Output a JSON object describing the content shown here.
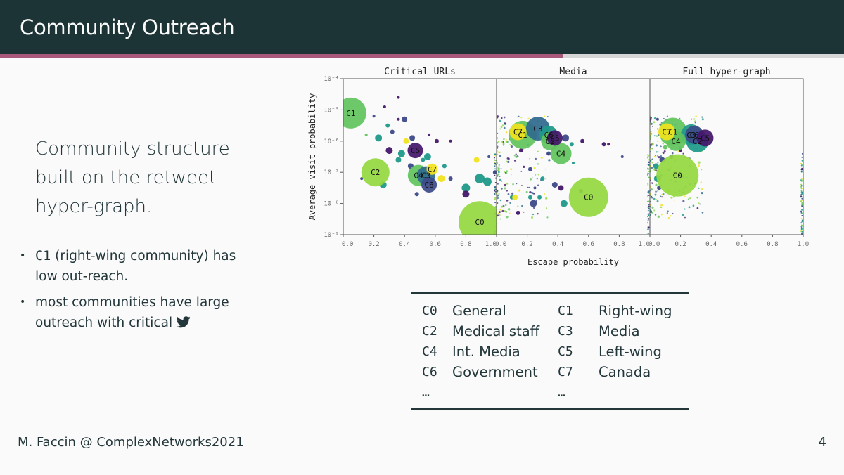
{
  "slide": {
    "title": "Community Outreach",
    "progress": 0.667,
    "statement_lines": [
      "Community structure",
      "built on the retweet",
      "hyper-graph."
    ],
    "bullet1_code": "C1",
    "bullet1_text": " (right-wing community) has low out-reach.",
    "bullet2_text": "most communities have large outreach with critical",
    "bullet2_icon": "twitter-bird-icon",
    "footer": "M. Faccin @ ComplexNetworks2021",
    "page_number": "4",
    "colors": {
      "titlebar": "#1c3436",
      "progress": "#a8587a",
      "text": "#23373b"
    }
  },
  "legend": {
    "rows": [
      [
        {
          "code": "C0",
          "name": "General"
        },
        {
          "code": "C1",
          "name": "Right-wing"
        }
      ],
      [
        {
          "code": "C2",
          "name": "Medical staff"
        },
        {
          "code": "C3",
          "name": "Media"
        }
      ],
      [
        {
          "code": "C4",
          "name": "Int. Media"
        },
        {
          "code": "C5",
          "name": "Left-wing"
        }
      ],
      [
        {
          "code": "C6",
          "name": "Government"
        },
        {
          "code": "C7",
          "name": "Canada"
        }
      ]
    ],
    "ellipsis": "…"
  },
  "chart_data": {
    "type": "scatter",
    "xlabel": "Escape probability",
    "ylabel": "Average visit probability",
    "xlim": [
      0,
      1
    ],
    "ylim_exponent": [
      -9,
      -4
    ],
    "y_scale": "log",
    "x_ticks": [
      "0.0",
      "0.2",
      "0.4",
      "0.6",
      "0.8",
      "1.0"
    ],
    "y_ticks": [
      "10⁻⁹",
      "10⁻⁸",
      "10⁻⁷",
      "10⁻⁶",
      "10⁻⁵",
      "10⁻⁴"
    ],
    "colors": {
      "green": "#62c45e",
      "lime": "#94d841",
      "yellow": "#f0e31f",
      "teal": "#1f9a8a",
      "blue": "#2f6a8e",
      "navy": "#3d4a89",
      "purple": "#44176a"
    },
    "panels": [
      {
        "title": "Critical URLs",
        "labeled": [
          {
            "label": "C1",
            "x": 0.05,
            "y": -5.1,
            "r": 22,
            "c": "green"
          },
          {
            "label": "C0",
            "x": 0.89,
            "y": -8.6,
            "r": 30,
            "c": "lime"
          },
          {
            "label": "C2",
            "x": 0.21,
            "y": -7.0,
            "r": 20,
            "c": "lime"
          },
          {
            "label": "C5",
            "x": 0.47,
            "y": -6.3,
            "r": 11,
            "c": "purple"
          },
          {
            "label": "C4",
            "x": 0.49,
            "y": -7.1,
            "r": 15,
            "c": "green"
          },
          {
            "label": "C3",
            "x": 0.54,
            "y": -7.1,
            "r": 13,
            "c": "blue"
          },
          {
            "label": "C7",
            "x": 0.58,
            "y": -6.9,
            "r": 8,
            "c": "yellow"
          },
          {
            "label": "C6",
            "x": 0.56,
            "y": -7.4,
            "r": 11,
            "c": "navy"
          }
        ],
        "small": [
          [
            0.2,
            -5.2,
            2,
            "navy"
          ],
          [
            0.27,
            -4.9,
            2,
            "purple"
          ],
          [
            0.36,
            -4.6,
            2,
            "purple"
          ],
          [
            0.29,
            -5.5,
            3,
            "teal"
          ],
          [
            0.32,
            -5.7,
            3,
            "navy"
          ],
          [
            0.36,
            -5.3,
            2,
            "purple"
          ],
          [
            0.4,
            -5.3,
            4,
            "navy"
          ],
          [
            0.23,
            -5.9,
            5,
            "teal"
          ],
          [
            0.3,
            -6.3,
            5,
            "purple"
          ],
          [
            0.38,
            -6.4,
            5,
            "teal"
          ],
          [
            0.41,
            -6.0,
            4,
            "yellow"
          ],
          [
            0.45,
            -5.9,
            4,
            "navy"
          ],
          [
            0.36,
            -6.6,
            4,
            "teal"
          ],
          [
            0.44,
            -6.8,
            4,
            "navy"
          ],
          [
            0.52,
            -6.6,
            3,
            "teal"
          ],
          [
            0.55,
            -6.5,
            5,
            "teal"
          ],
          [
            0.61,
            -6.0,
            3,
            "purple"
          ],
          [
            0.66,
            -6.8,
            3,
            "teal"
          ],
          [
            0.7,
            -6.0,
            2,
            "purple"
          ],
          [
            0.87,
            -6.6,
            4,
            "yellow"
          ],
          [
            0.95,
            -6.5,
            2,
            "navy"
          ],
          [
            0.7,
            -7.2,
            3,
            "navy"
          ],
          [
            0.64,
            -7.2,
            5,
            "yellow"
          ],
          [
            0.8,
            -7.5,
            6,
            "teal"
          ],
          [
            0.8,
            -7.7,
            5,
            "purple"
          ],
          [
            0.89,
            -7.2,
            7,
            "teal"
          ],
          [
            0.94,
            -7.3,
            6,
            "teal"
          ],
          [
            0.26,
            -7.4,
            5,
            "teal"
          ],
          [
            0.12,
            -7.2,
            2,
            "navy"
          ],
          [
            0.48,
            -7.7,
            3,
            "navy"
          ],
          [
            0.56,
            -5.8,
            2,
            "purple"
          ],
          [
            0.15,
            -5.8,
            2,
            "green"
          ],
          [
            0.99,
            -7.0,
            3,
            "navy"
          ]
        ]
      },
      {
        "title": "Media",
        "labeled": [
          {
            "label": "C0",
            "x": 0.6,
            "y": -7.8,
            "r": 28,
            "c": "lime"
          },
          {
            "label": "C1",
            "x": 0.17,
            "y": -5.8,
            "r": 20,
            "c": "green"
          },
          {
            "label": "C7",
            "x": 0.14,
            "y": -5.7,
            "r": 12,
            "c": "yellow"
          },
          {
            "label": "C3",
            "x": 0.27,
            "y": -5.6,
            "r": 17,
            "c": "blue"
          },
          {
            "label": "C6",
            "x": 0.34,
            "y": -5.8,
            "r": 13,
            "c": "teal"
          },
          {
            "label": "C5",
            "x": 0.38,
            "y": -5.9,
            "r": 11,
            "c": "purple"
          },
          {
            "label": "C2",
            "x": 0.35,
            "y": -6.0,
            "r": 13,
            "c": "green"
          },
          {
            "label": "C4",
            "x": 0.42,
            "y": -6.4,
            "r": 15,
            "c": "green"
          }
        ],
        "small": [
          [
            0.45,
            -5.9,
            5,
            "navy"
          ],
          [
            0.49,
            -6.1,
            3,
            "teal"
          ],
          [
            0.56,
            -6.0,
            3,
            "purple"
          ],
          [
            0.7,
            -6.1,
            3,
            "purple"
          ],
          [
            0.73,
            -6.1,
            2,
            "purple"
          ],
          [
            0.82,
            -6.5,
            2,
            "navy"
          ],
          [
            0.22,
            -6.9,
            3,
            "navy"
          ],
          [
            0.25,
            -7.5,
            2,
            "navy"
          ],
          [
            0.3,
            -7.2,
            3,
            "teal"
          ],
          [
            0.38,
            -7.4,
            4,
            "navy"
          ],
          [
            0.42,
            -7.5,
            4,
            "purple"
          ],
          [
            0.28,
            -7.8,
            3,
            "teal"
          ],
          [
            0.22,
            -7.8,
            3,
            "teal"
          ],
          [
            0.24,
            -8.0,
            5,
            "navy"
          ],
          [
            0.1,
            -7.8,
            3,
            "teal"
          ],
          [
            0.12,
            -7.8,
            4,
            "yellow"
          ],
          [
            0.14,
            -8.3,
            3,
            "purple"
          ],
          [
            0.44,
            -8.0,
            5,
            "teal"
          ],
          [
            0.55,
            -7.6,
            3,
            "purple"
          ],
          [
            0.34,
            -6.4,
            3,
            "navy"
          ],
          [
            0.16,
            -6.3,
            3,
            "purple"
          ],
          [
            0.5,
            -6.7,
            2,
            "teal"
          ]
        ],
        "noise": 180
      },
      {
        "title": "Full hyper-graph",
        "labeled": [
          {
            "label": "C0",
            "x": 0.18,
            "y": -7.1,
            "r": 30,
            "c": "lime"
          },
          {
            "label": "C1",
            "x": 0.15,
            "y": -5.7,
            "r": 20,
            "c": "green"
          },
          {
            "label": "C7",
            "x": 0.11,
            "y": -5.7,
            "r": 12,
            "c": "yellow"
          },
          {
            "label": "C4",
            "x": 0.17,
            "y": -6.0,
            "r": 14,
            "c": "green"
          },
          {
            "label": "C3",
            "x": 0.27,
            "y": -5.8,
            "r": 15,
            "c": "teal"
          },
          {
            "label": "C6",
            "x": 0.29,
            "y": -5.8,
            "r": 13,
            "c": "navy"
          },
          {
            "label": "C5",
            "x": 0.36,
            "y": -5.9,
            "r": 12,
            "c": "purple"
          },
          {
            "label": "C2",
            "x": 0.31,
            "y": -6.0,
            "r": 16,
            "c": "teal"
          }
        ],
        "small": [
          [
            0.04,
            -6.8,
            4,
            "teal"
          ],
          [
            0.05,
            -7.2,
            5,
            "teal"
          ],
          [
            0.08,
            -6.6,
            4,
            "navy"
          ],
          [
            0.1,
            -6.2,
            3,
            "green"
          ],
          [
            0.05,
            -5.3,
            2,
            "navy"
          ],
          [
            0.12,
            -7.6,
            3,
            "yellow"
          ],
          [
            0.06,
            -7.5,
            3,
            "navy"
          ],
          [
            0.2,
            -6.3,
            2,
            "purple"
          ],
          [
            0.14,
            -6.5,
            3,
            "navy"
          ]
        ],
        "noise": 220
      }
    ]
  }
}
